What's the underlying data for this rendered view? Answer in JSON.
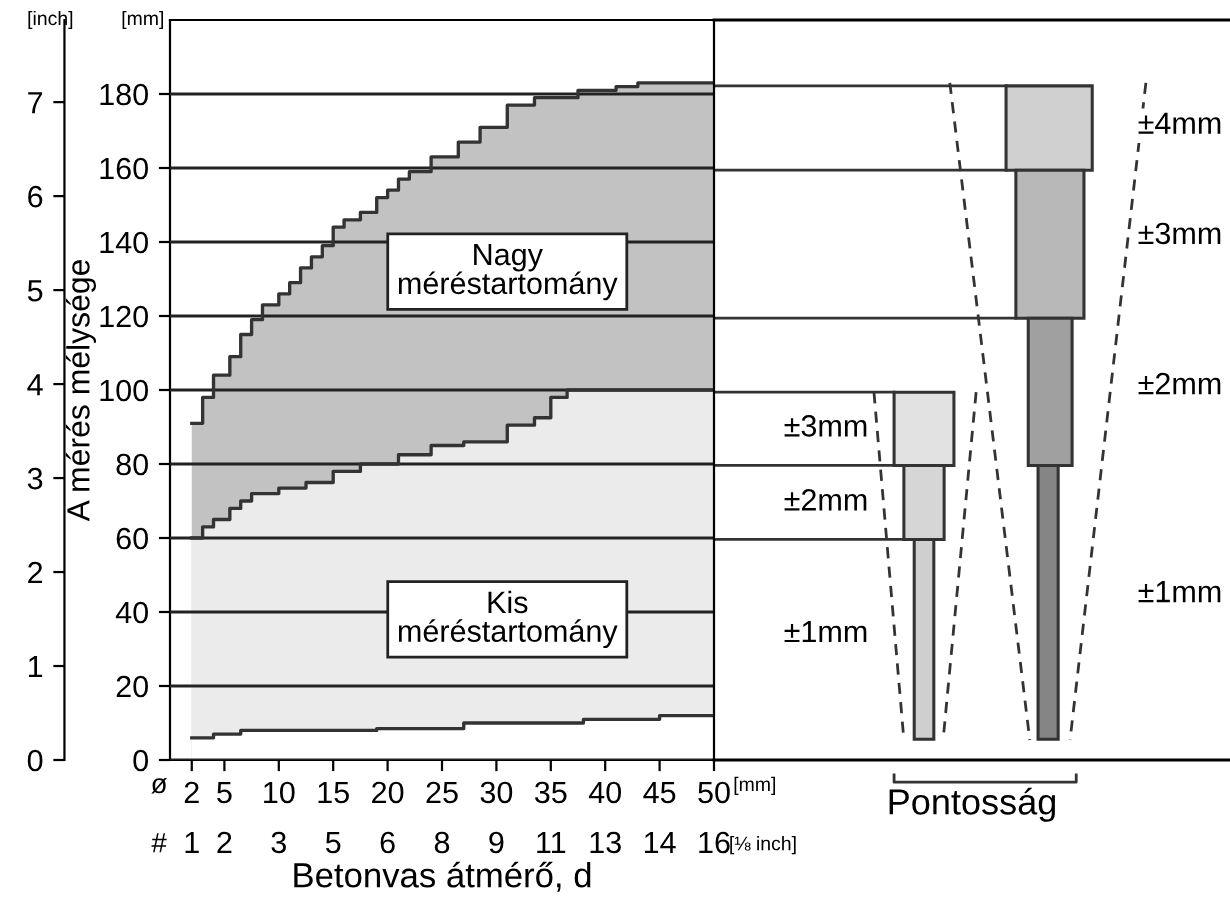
{
  "chart_data": [
    {
      "type": "step",
      "xlabel": "Betonvas átmérő, d",
      "ylabel": "A mérés mélysége",
      "xlim": [
        0,
        50
      ],
      "xticks": [
        2,
        5,
        10,
        15,
        20,
        25,
        30,
        35,
        40,
        45,
        50
      ],
      "ylim": [
        0,
        200
      ],
      "yticks": [
        0,
        20,
        40,
        60,
        80,
        100,
        120,
        140,
        160,
        180
      ],
      "y2lim": [
        0,
        7.874
      ],
      "y2ticks": [
        0,
        1,
        2,
        3,
        4,
        5,
        6,
        7
      ],
      "grid": "y",
      "series": [
        {
          "color": "#333333",
          "x": [
            2,
            3,
            4,
            5.5,
            6.5,
            7.5,
            8.5,
            10,
            11,
            12,
            13,
            14,
            15,
            16,
            17.5,
            19,
            20,
            21,
            22,
            24,
            26.5,
            28.5,
            31,
            33.5,
            37.5,
            41,
            43,
            50
          ],
          "values": [
            91,
            98,
            104,
            109,
            115,
            119,
            123,
            126,
            129,
            133,
            136,
            139,
            144,
            146,
            148,
            152,
            154,
            157,
            159,
            163,
            167,
            171,
            177,
            179,
            181,
            182,
            183,
            183
          ]
        },
        {
          "color": "#333333",
          "x": [
            2,
            3,
            4,
            5.5,
            6.5,
            7.5,
            10,
            12.5,
            15,
            17.5,
            21,
            24,
            27,
            31,
            33.5,
            35,
            36.5,
            50
          ],
          "values": [
            60,
            63,
            65,
            68,
            70,
            72,
            73.5,
            75,
            78,
            80,
            82.5,
            85,
            86,
            90.5,
            92.5,
            98,
            100,
            100
          ]
        },
        {
          "color": "#333333",
          "x": [
            2,
            4,
            6.5,
            19,
            27,
            38,
            45,
            50
          ],
          "values": [
            6,
            7,
            8,
            8.5,
            10,
            11,
            12,
            12
          ]
        }
      ],
      "annotations": [
        "Nagy\nméréstartomány",
        "Kis\nméréstartomány",
        "[mm]",
        "[inch]",
        "[mm]",
        "[⅛ inch]",
        "ø",
        "#",
        "1",
        "2",
        "3",
        "5",
        "6",
        "8",
        "9",
        "11",
        "13",
        "14",
        "16"
      ]
    },
    {
      "type": "other",
      "xlabel": "Pontosság",
      "annotations": [
        "±3mm",
        "±2mm",
        "±1mm",
        "±4mm",
        "±3mm",
        "±2mm",
        "±1mm"
      ]
    }
  ]
}
